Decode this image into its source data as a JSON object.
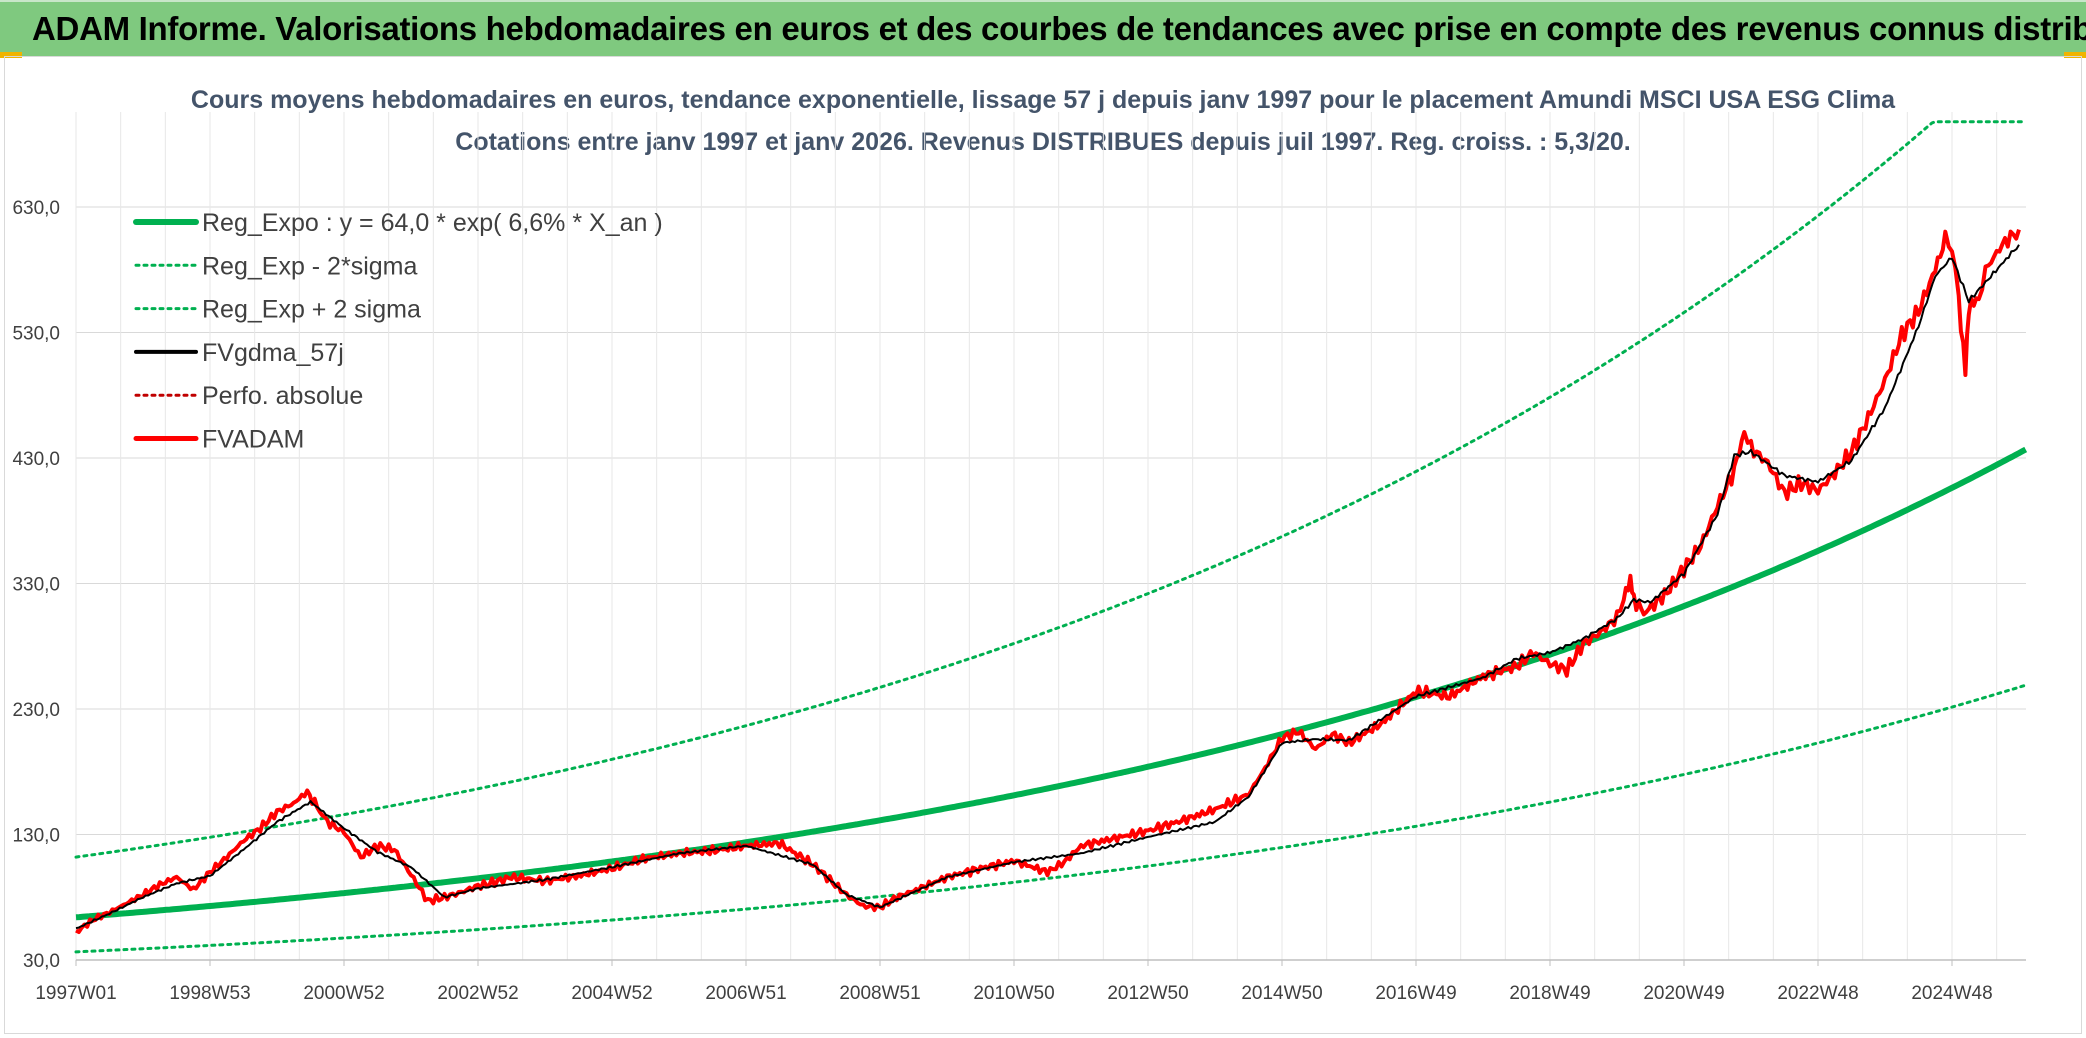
{
  "header": {
    "title": "ADAM Informe. Valorisations hebdomadaires en euros et des courbes de tendances avec prise en compte des revenus connus distribués"
  },
  "colors": {
    "banner": "#7fc97f",
    "trend": "#00b050",
    "adam": "#ff0000",
    "gdma": "#000000",
    "perfo": "#c00000"
  },
  "chart_data": {
    "type": "line",
    "title": "Cours moyens hebdomadaires en euros, tendance exponentielle, lissage 57 j depuis janv 1997 pour le placement Amundi MSCI USA ESG Clima",
    "subtitle": "Cotations entre janv 1997 et janv 2026. Revenus DISTRIBUES depuis juil 1997. Reg. croiss. : 5,3/20.",
    "xlabel": "",
    "ylabel": "",
    "ylim": [
      30,
      630
    ],
    "yticks": [
      "630,0",
      "530,0",
      "430,0",
      "330,0",
      "230,0",
      "130,0",
      "30,0"
    ],
    "ytick_values": [
      630,
      530,
      430,
      330,
      230,
      130,
      30
    ],
    "xlim": [
      1997.0,
      2026.1
    ],
    "xticks": [
      "1997W01",
      "1998W53",
      "2000W52",
      "2002W52",
      "2004W52",
      "2006W51",
      "2008W51",
      "2010W50",
      "2012W50",
      "2014W50",
      "2016W49",
      "2018W49",
      "2020W49",
      "2022W48",
      "2024W48"
    ],
    "xtick_years": [
      1997.0,
      1999.0,
      2001.0,
      2003.0,
      2005.0,
      2007.0,
      2009.0,
      2011.0,
      2013.0,
      2015.0,
      2017.0,
      2019.0,
      2021.0,
      2023.0,
      2025.0
    ],
    "legend": [
      {
        "name": "Reg_Expo : y = 64,0 * exp( 6,6% *  X_an )",
        "style": "solid-thick",
        "color": "#00b050"
      },
      {
        "name": "Reg_Exp - 2*sigma",
        "style": "dotted",
        "color": "#00b050"
      },
      {
        "name": "Reg_Exp + 2 sigma",
        "style": "dotted",
        "color": "#00b050"
      },
      {
        "name": "FVgdma_57j",
        "style": "solid",
        "color": "#000000"
      },
      {
        "name": "Perfo. absolue",
        "style": "dotted",
        "color": "#c00000"
      },
      {
        "name": "FVADAM",
        "style": "solid-thick",
        "color": "#ff0000"
      }
    ],
    "regression": {
      "a": 64.0,
      "rate": 0.066,
      "lower_factor": 0.57,
      "upper_factor": 1.75,
      "upper_cap": 698
    },
    "series": [
      {
        "name": "FVADAM",
        "x": [
          1997.0,
          1997.25,
          1997.5,
          1997.75,
          1998.0,
          1998.25,
          1998.5,
          1998.75,
          1999.0,
          1999.25,
          1999.5,
          1999.75,
          2000.0,
          2000.25,
          2000.45,
          2000.6,
          2000.75,
          2001.0,
          2001.25,
          2001.5,
          2001.75,
          2002.0,
          2002.25,
          2002.5,
          2002.75,
          2003.0,
          2003.25,
          2003.5,
          2004.0,
          2004.5,
          2005.0,
          2005.5,
          2006.0,
          2006.5,
          2007.0,
          2007.5,
          2008.0,
          2008.25,
          2008.5,
          2008.75,
          2009.0,
          2009.25,
          2009.5,
          2010.0,
          2010.5,
          2011.0,
          2011.5,
          2011.75,
          2012.0,
          2012.5,
          2013.0,
          2013.5,
          2014.0,
          2014.5,
          2014.75,
          2015.0,
          2015.25,
          2015.5,
          2015.75,
          2016.0,
          2016.5,
          2017.0,
          2017.5,
          2018.0,
          2018.5,
          2018.75,
          2019.0,
          2019.25,
          2019.5,
          2019.75,
          2020.0,
          2020.1,
          2020.2,
          2020.25,
          2020.4,
          2020.75,
          2021.0,
          2021.25,
          2021.5,
          2021.75,
          2021.9,
          2022.0,
          2022.25,
          2022.5,
          2022.75,
          2023.0,
          2023.25,
          2023.5,
          2023.75,
          2024.0,
          2024.25,
          2024.5,
          2024.75,
          2024.9,
          2025.0,
          2025.1,
          2025.2,
          2025.25,
          2025.4,
          2025.5,
          2025.75,
          2026.0
        ],
        "values": [
          52,
          62,
          68,
          75,
          82,
          90,
          96,
          86,
          100,
          112,
          125,
          135,
          148,
          155,
          164,
          152,
          140,
          132,
          112,
          121,
          118,
          98,
          77,
          80,
          84,
          89,
          92,
          96,
          93,
          97,
          103,
          111,
          115,
          117,
          121,
          123,
          106,
          94,
          82,
          73,
          72,
          80,
          85,
          96,
          103,
          109,
          100,
          108,
          121,
          127,
          133,
          141,
          150,
          162,
          183,
          207,
          212,
          198,
          210,
          203,
          219,
          244,
          240,
          256,
          264,
          275,
          266,
          261,
          282,
          291,
          303,
          318,
          336,
          318,
          306,
          323,
          342,
          360,
          392,
          420,
          452,
          438,
          426,
          402,
          410,
          404,
          418,
          435,
          462,
          492,
          528,
          547,
          580,
          605,
          600,
          556,
          496,
          548,
          560,
          580,
          600,
          612
        ]
      },
      {
        "name": "FVgdma_57j",
        "x": [
          1997.0,
          1997.5,
          1998.0,
          1998.5,
          1999.0,
          1999.5,
          2000.0,
          2000.5,
          2001.0,
          2001.5,
          2002.0,
          2002.5,
          2003.0,
          2004.0,
          2005.0,
          2006.0,
          2007.0,
          2008.0,
          2008.5,
          2009.0,
          2009.5,
          2010.0,
          2011.0,
          2012.0,
          2013.0,
          2014.0,
          2014.5,
          2015.0,
          2015.5,
          2016.0,
          2017.0,
          2018.0,
          2018.5,
          2019.0,
          2019.5,
          2020.0,
          2020.25,
          2020.5,
          2021.0,
          2021.5,
          2021.75,
          2022.0,
          2022.5,
          2023.0,
          2023.5,
          2024.0,
          2024.5,
          2024.75,
          2025.0,
          2025.25,
          2025.5,
          2026.0
        ],
        "values": [
          55,
          67,
          80,
          91,
          97,
          118,
          140,
          156,
          135,
          116,
          104,
          80,
          87,
          94,
          104,
          115,
          121,
          106,
          82,
          72,
          84,
          96,
          108,
          115,
          128,
          140,
          160,
          203,
          206,
          205,
          240,
          255,
          270,
          275,
          286,
          302,
          317,
          315,
          338,
          385,
          432,
          435,
          416,
          411,
          428,
          470,
          535,
          575,
          590,
          555,
          570,
          600
        ]
      }
    ]
  }
}
